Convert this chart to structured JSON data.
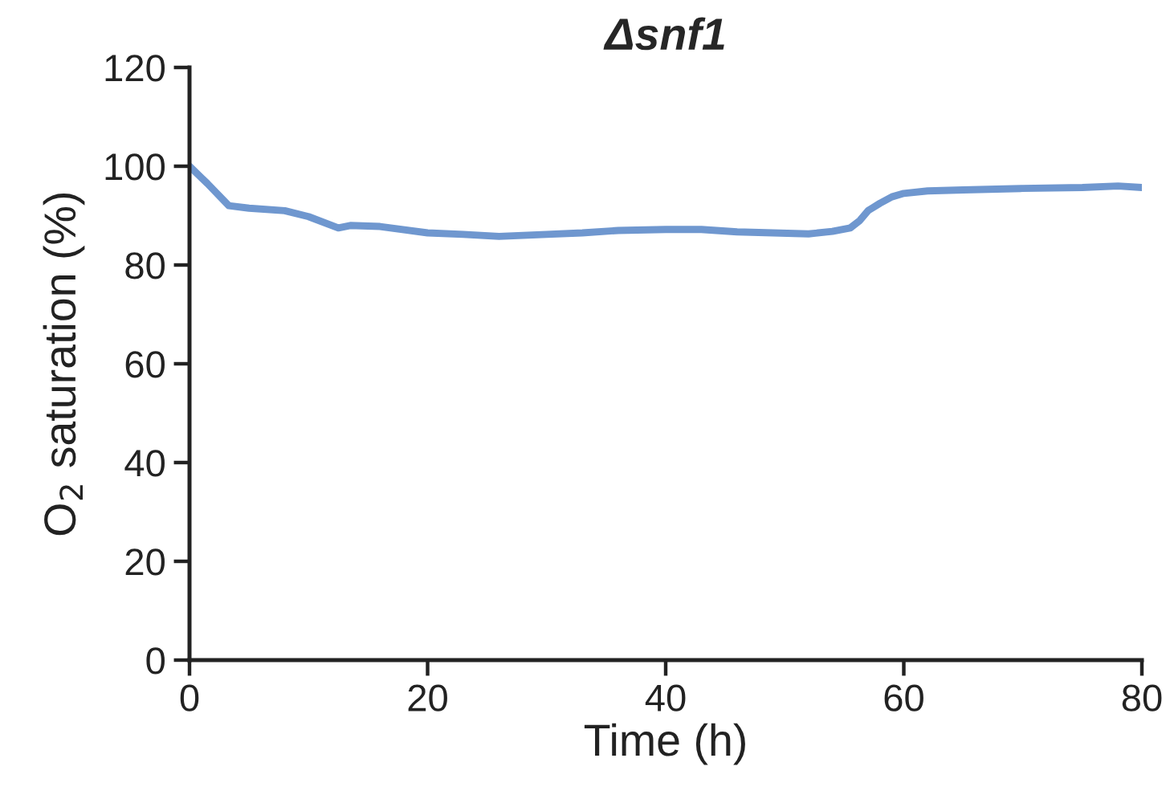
{
  "chart_data": {
    "type": "line",
    "title": "Δsnf1",
    "xlabel": "Time (h)",
    "ylabel": "O$_{2}$ saturation (%)",
    "series": [
      {
        "color": "#6f97cf",
        "x": [
          0,
          1.5,
          3.3,
          5,
          8,
          10,
          12.5,
          13.5,
          16,
          20,
          23,
          26,
          30,
          33,
          36,
          40,
          43,
          46,
          49,
          52,
          54,
          55.5,
          56.3,
          57,
          58,
          59,
          60,
          62,
          65,
          70,
          75,
          78,
          80
        ],
        "values": [
          100,
          96.5,
          92,
          91.5,
          91,
          89.8,
          87.5,
          88,
          87.8,
          86.5,
          86.2,
          85.8,
          86.2,
          86.5,
          87,
          87.2,
          87.2,
          86.7,
          86.5,
          86.3,
          86.8,
          87.5,
          89,
          91,
          92.5,
          93.8,
          94.5,
          95,
          95.2,
          95.5,
          95.7,
          96,
          95.7
        ]
      }
    ],
    "xlim": [
      0,
      80
    ],
    "xticks": [
      0,
      20,
      40,
      60,
      80
    ],
    "ylim": [
      0,
      120
    ],
    "yticks": [
      0,
      20,
      40,
      60,
      80,
      100,
      120
    ],
    "grid": false,
    "legend": false,
    "marker": "none",
    "line_style": "solid"
  }
}
